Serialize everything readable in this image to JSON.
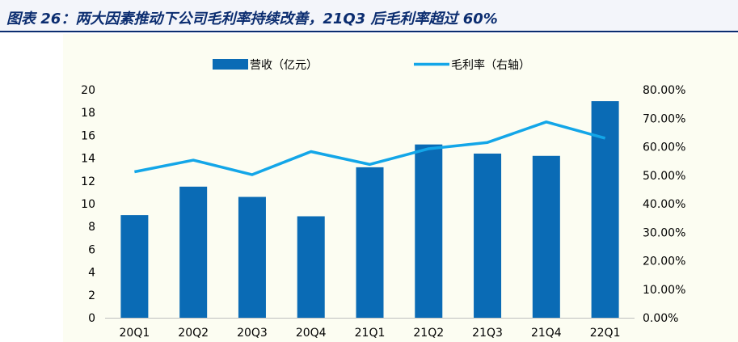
{
  "figure_title": "图表 26：两大因素推动下公司毛利率持续改善，21Q3 后毛利率超过 60%",
  "colors": {
    "bar": "#0a6bb5",
    "line": "#13a6e8",
    "title": "#0b2d70",
    "title_bg": "#f3f5fa",
    "plot_bg": "#fcfdf2"
  },
  "chart_data": {
    "type": "bar+line",
    "title": "",
    "categories": [
      "20Q1",
      "20Q2",
      "20Q3",
      "20Q4",
      "21Q1",
      "21Q2",
      "21Q3",
      "21Q4",
      "22Q1"
    ],
    "series": [
      {
        "name": "营收（亿元）",
        "type": "bar",
        "axis": "left",
        "values": [
          9.0,
          11.5,
          10.6,
          8.9,
          13.2,
          15.2,
          14.4,
          14.2,
          19.0
        ]
      },
      {
        "name": "毛利率（右轴）",
        "type": "line",
        "axis": "right",
        "values": [
          0.512,
          0.553,
          0.502,
          0.583,
          0.538,
          0.593,
          0.615,
          0.687,
          0.63
        ]
      }
    ],
    "left_axis": {
      "ylim": [
        0,
        20
      ],
      "ticks": [
        "0",
        "2",
        "4",
        "6",
        "8",
        "10",
        "12",
        "14",
        "16",
        "18",
        "20"
      ]
    },
    "right_axis": {
      "ylim": [
        0,
        0.8
      ],
      "ticks": [
        "0.00%",
        "10.00%",
        "20.00%",
        "30.00%",
        "40.00%",
        "50.00%",
        "60.00%",
        "70.00%",
        "80.00%"
      ]
    },
    "legend_position": "top-center",
    "grid": false
  }
}
